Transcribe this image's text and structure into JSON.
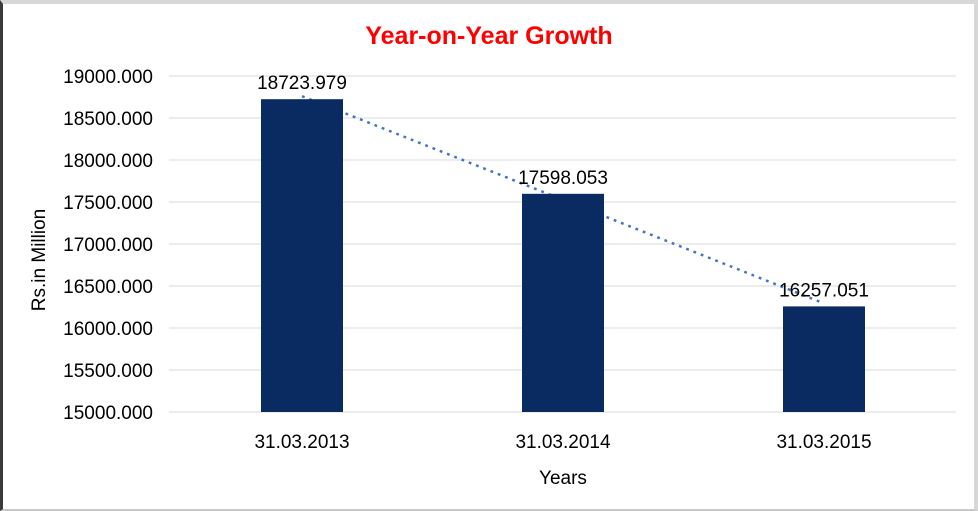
{
  "chart_data": {
    "type": "bar",
    "title": "Year-on-Year Growth",
    "xlabel": "Years",
    "ylabel": "Rs.in Million",
    "categories": [
      "31.03.2013",
      "31.03.2014",
      "31.03.2015"
    ],
    "values": [
      18723.979,
      17598.053,
      16257.051
    ],
    "data_labels": [
      "18723.979",
      "17598.053",
      "16257.051"
    ],
    "ytick_labels": [
      "19000.000",
      "18500.000",
      "18000.000",
      "17500.000",
      "17000.000",
      "16500.000",
      "16000.000",
      "15500.000",
      "15000.000"
    ],
    "ylim": [
      15000,
      19000
    ],
    "ytick_step": 500,
    "grid": "horizontal",
    "legend": "none",
    "trendline": {
      "type": "linear",
      "style": "dotted",
      "from_value": 18723.979,
      "to_value": 16257.051
    },
    "colors": {
      "bar": "#0a2a62",
      "trendline": "#4673bd",
      "title": "#ff0000",
      "grid": "#d9d9d9",
      "text": "#000000"
    }
  }
}
